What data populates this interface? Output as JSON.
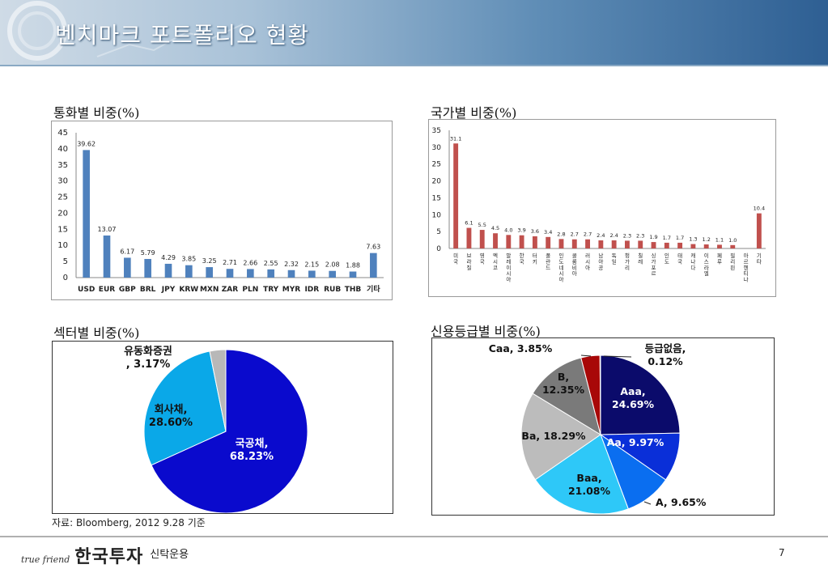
{
  "slide": {
    "title": "벤치마크 포트폴리오 현황",
    "page_number": "7",
    "source_note": "자료: Bloomberg, 2012 9.28 기준",
    "logo": {
      "tagline": "true friend",
      "name": "한국투자",
      "sub": "신탁운용"
    }
  },
  "sections": {
    "currency": "통화별 비중(%)",
    "country": "국가별 비중(%)",
    "sector": "섹터별 비중(%)",
    "rating": "신용등급별 비중(%)"
  },
  "chart_data": [
    {
      "id": "currency",
      "type": "bar",
      "categories": [
        "USD",
        "EUR",
        "GBP",
        "BRL",
        "JPY",
        "KRW",
        "MXN",
        "ZAR",
        "PLN",
        "TRY",
        "MYR",
        "IDR",
        "RUB",
        "THB",
        "기타"
      ],
      "values": [
        39.62,
        13.07,
        6.17,
        5.79,
        4.29,
        3.85,
        3.25,
        2.71,
        2.66,
        2.55,
        2.32,
        2.15,
        2.08,
        1.88,
        7.63
      ],
      "value_labels": [
        "39.62",
        "13.07",
        "6.17",
        "5.79",
        "4.29",
        "3.85",
        "3.25",
        "2.71",
        "2.66",
        "2.55",
        "2.32",
        "2.15",
        "2.08",
        "1.88",
        "7.63"
      ],
      "ylim": [
        0,
        45
      ],
      "yticks": [
        "0",
        "5",
        "10",
        "15",
        "20",
        "25",
        "30",
        "35",
        "40",
        "45"
      ],
      "color": "#4f81bd",
      "grid": false
    },
    {
      "id": "country",
      "type": "bar",
      "categories": [
        "미국",
        "브라질",
        "영국",
        "멕시코",
        "말레이시아",
        "한국",
        "터키",
        "폴란드",
        "인도네시아",
        "콜롬비아",
        "러시아",
        "남아공",
        "독일",
        "헝가리",
        "칠레",
        "싱가포르",
        "인도",
        "태국",
        "캐나다",
        "이스라엘",
        "페루",
        "필리핀",
        "아르헨티나",
        "기타"
      ],
      "values": [
        31.1,
        6.1,
        5.5,
        4.5,
        4.0,
        3.9,
        3.6,
        3.4,
        2.8,
        2.7,
        2.7,
        2.4,
        2.4,
        2.3,
        2.3,
        1.9,
        1.7,
        1.7,
        1.3,
        1.2,
        1.1,
        1.0,
        0,
        10.4
      ],
      "value_labels": [
        "31.1",
        "6.1",
        "5.5",
        "4.5",
        "4.0",
        "3.9",
        "3.6",
        "3.4",
        "2.8",
        "2.7",
        "2.7",
        "2.4",
        "2.4",
        "2.3",
        "2.3",
        "1.9",
        "1.7",
        "1.7",
        "1.3",
        "1.2",
        "1.1",
        "1.0",
        "",
        "10.4"
      ],
      "ylim": [
        0,
        35
      ],
      "yticks": [
        "0",
        "5",
        "10",
        "15",
        "20",
        "25",
        "30",
        "35"
      ],
      "color": "#c0504d",
      "grid": false
    },
    {
      "id": "sector",
      "type": "pie",
      "slices": [
        {
          "label": "국공채,",
          "value_label": "68.23%",
          "value": 68.23,
          "color": "#0a0acd"
        },
        {
          "label": "회사채,",
          "value_label": "28.60%",
          "value": 28.6,
          "color": "#0aa8e8"
        },
        {
          "label": "유동화증권",
          "value_label": ", 3.17%",
          "value": 3.17,
          "color": "#b8b8b8"
        }
      ]
    },
    {
      "id": "rating",
      "type": "pie",
      "slices": [
        {
          "label": "Aaa,",
          "value_label": "24.69%",
          "value": 24.69,
          "color": "#0b0b6b"
        },
        {
          "label": "Aa, 9.97%",
          "value_label": "",
          "value": 9.97,
          "color": "#0a2fd8"
        },
        {
          "label": "A, 9.65%",
          "value_label": "",
          "value": 9.65,
          "color": "#0a6ef0"
        },
        {
          "label": "Baa,",
          "value_label": "21.08%",
          "value": 21.08,
          "color": "#2ec8f8"
        },
        {
          "label": "Ba, 18.29%",
          "value_label": "",
          "value": 18.29,
          "color": "#bcbcbc"
        },
        {
          "label": "B,",
          "value_label": "12.35%",
          "value": 12.35,
          "color": "#7a7a7a"
        },
        {
          "label": "Caa, 3.85%",
          "value_label": "",
          "value": 3.85,
          "color": "#a80808"
        },
        {
          "label": "등급없음,",
          "value_label": "0.12%",
          "value": 0.12,
          "color": "#ffffff"
        }
      ]
    }
  ]
}
